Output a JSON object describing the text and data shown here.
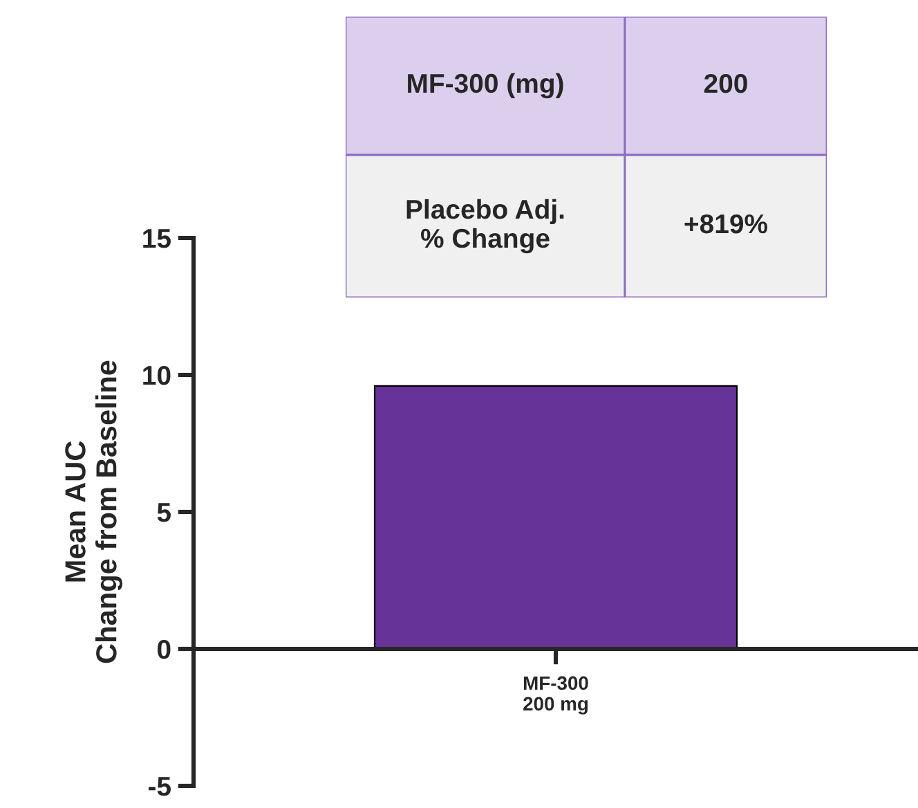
{
  "chart_data": {
    "type": "bar",
    "ylabel": "Mean AUC\nChange from Baseline",
    "categories": [
      "MF-300\n200 mg"
    ],
    "values": [
      9.6
    ],
    "color": "#663399",
    "ylim": [
      -5,
      15
    ],
    "yticks": [
      -5,
      0,
      5,
      10,
      15
    ],
    "annotations": [
      "MF-300 (mg)",
      "200",
      "Placebo Adj.\n% Change",
      "+819%"
    ]
  }
}
